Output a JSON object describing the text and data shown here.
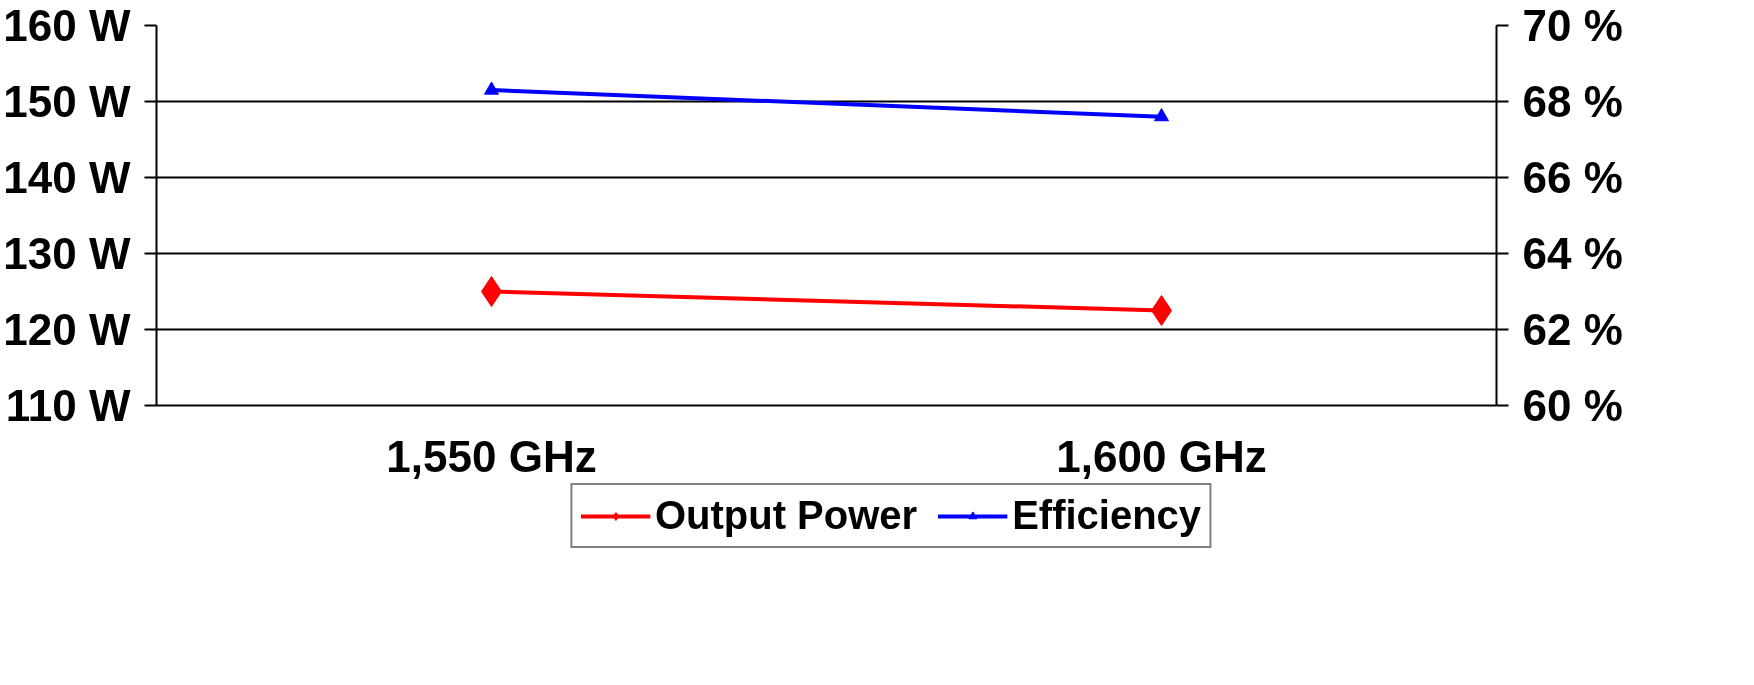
{
  "chart_data": {
    "type": "line",
    "categories": [
      "1,550 GHz",
      "1,600 GHz"
    ],
    "series": [
      {
        "name": "Output Power",
        "color": "#ff0000",
        "values": [
          125,
          122.5
        ],
        "marker": "diamond"
      },
      {
        "name": "Efficiency",
        "color": "#0000ff",
        "values": [
          68.3,
          67.6
        ],
        "marker": "triangle",
        "axis": "y2"
      }
    ],
    "ylim": [
      110,
      160
    ],
    "yticks": [
      {
        "value": 110,
        "label": "110 W"
      },
      {
        "value": 120,
        "label": "120 W"
      },
      {
        "value": 130,
        "label": "130 W"
      },
      {
        "value": 140,
        "label": "140 W"
      },
      {
        "value": 150,
        "label": "150 W"
      },
      {
        "value": 160,
        "label": "160 W"
      }
    ],
    "y2lim": [
      60,
      70
    ],
    "y2ticks": [
      {
        "value": 60,
        "label": "60 %"
      },
      {
        "value": 62,
        "label": "62 %"
      },
      {
        "value": 64,
        "label": "64 %"
      },
      {
        "value": 66,
        "label": "66 %"
      },
      {
        "value": 68,
        "label": "68 %"
      },
      {
        "value": 70,
        "label": "70 %"
      }
    ],
    "grid": "y",
    "legend": "bottom",
    "line_style": "solid"
  }
}
